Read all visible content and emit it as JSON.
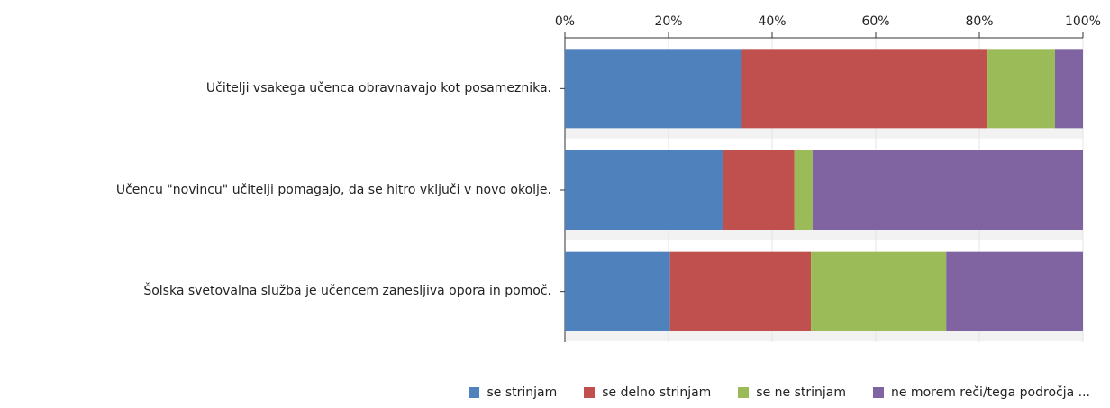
{
  "chart_data": {
    "type": "bar",
    "orientation": "horizontal",
    "stacked": true,
    "categories": [
      "Učitelji vsakega učenca obravnavajo kot posameznika.",
      "Učencu \"novincu\" učitelji pomagajo, da se hitro vključi v novo okolje.",
      "Šolska svetovalna služba je učencem zanesljiva opora in pomoč."
    ],
    "series": [
      {
        "name": "se strinjam",
        "color": "#4f81bd",
        "values": [
          34,
          30.6,
          20.3
        ]
      },
      {
        "name": "se delno strinjam",
        "color": "#c0504d",
        "values": [
          47.6,
          13.7,
          27.2
        ]
      },
      {
        "name": "se ne strinjam",
        "color": "#9bbb59",
        "values": [
          13,
          3.5,
          26.1
        ]
      },
      {
        "name": "ne morem reči/tega področja ...",
        "color": "#8064a2",
        "values": [
          5.4,
          52.2,
          26.4
        ]
      }
    ],
    "xlim": [
      0,
      100
    ],
    "xticks": [
      {
        "value": 0,
        "label": "0%"
      },
      {
        "value": 20,
        "label": "20%"
      },
      {
        "value": 40,
        "label": "40%"
      },
      {
        "value": 60,
        "label": "60%"
      },
      {
        "value": 80,
        "label": "80%"
      },
      {
        "value": 100,
        "label": "100%"
      }
    ],
    "grid": true,
    "legend": "bottom"
  }
}
